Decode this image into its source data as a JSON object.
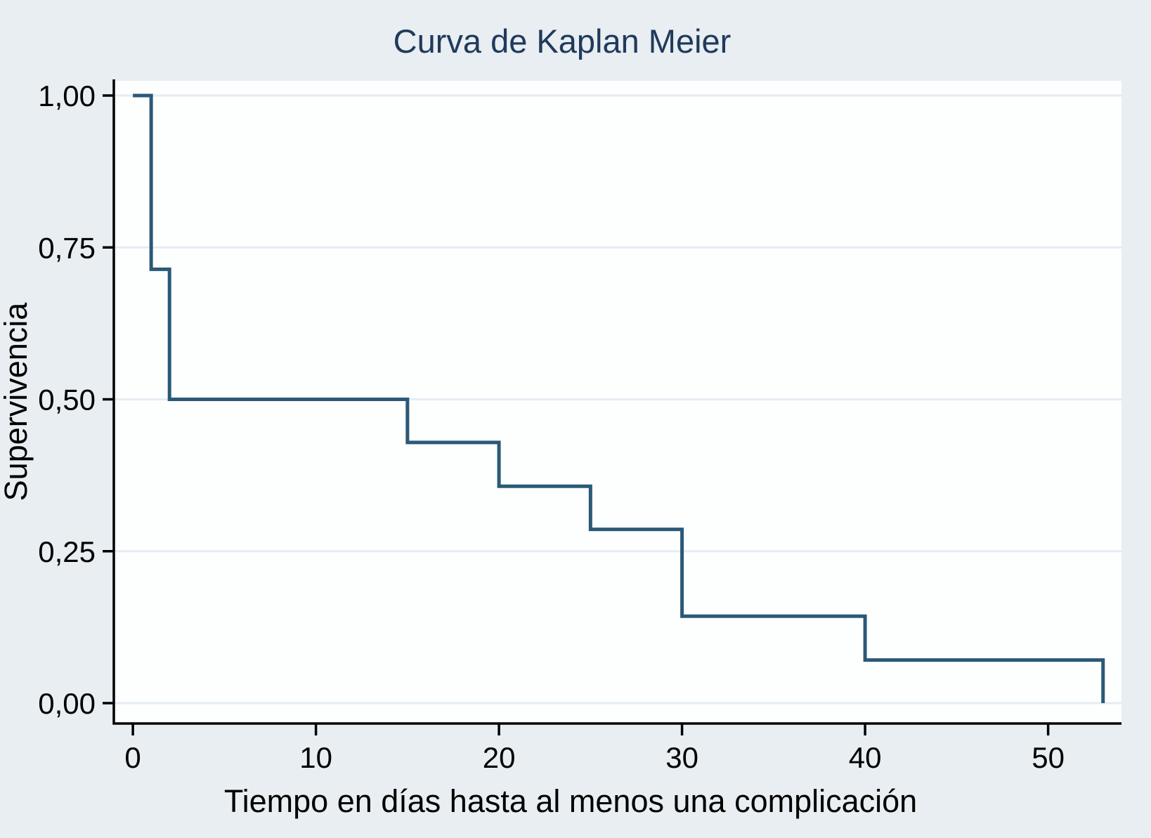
{
  "colors": {
    "background": "#e8eef1",
    "plot_background": "#fdfefe",
    "curve": "#2b5977",
    "title_text": "#203a5c",
    "axis_text": "#000000",
    "axis_line": "#000000",
    "gridline": "#e4edf3"
  },
  "chart_data": {
    "type": "line",
    "subtype": "kaplan-meier-step",
    "title": "Curva de Kaplan Meier",
    "xlabel": "Tiempo en días hasta al menos una complicación",
    "ylabel": "Supervivencia",
    "xlim": [
      0,
      53
    ],
    "ylim": [
      0,
      1
    ],
    "grid": "horizontal",
    "legend_position": "none",
    "x_ticks": [
      {
        "value": 0,
        "label": "0"
      },
      {
        "value": 10,
        "label": "10"
      },
      {
        "value": 20,
        "label": "20"
      },
      {
        "value": 30,
        "label": "30"
      },
      {
        "value": 40,
        "label": "40"
      },
      {
        "value": 50,
        "label": "50"
      }
    ],
    "y_ticks": [
      {
        "value": 1.0,
        "label": "1,00"
      },
      {
        "value": 0.75,
        "label": "0,75"
      },
      {
        "value": 0.5,
        "label": "0,50"
      },
      {
        "value": 0.25,
        "label": "0,25"
      },
      {
        "value": 0.0,
        "label": "0,00"
      }
    ],
    "series": [
      {
        "name": "Supervivencia",
        "points": [
          {
            "t": 0,
            "s": 1.0
          },
          {
            "t": 1,
            "s": 0.714
          },
          {
            "t": 2,
            "s": 0.5
          },
          {
            "t": 15,
            "s": 0.429
          },
          {
            "t": 20,
            "s": 0.357
          },
          {
            "t": 25,
            "s": 0.286
          },
          {
            "t": 30,
            "s": 0.143
          },
          {
            "t": 40,
            "s": 0.071
          },
          {
            "t": 53,
            "s": 0.0
          }
        ]
      }
    ]
  }
}
